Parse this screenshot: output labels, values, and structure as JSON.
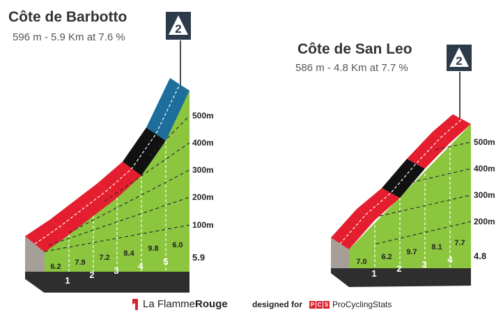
{
  "chart_data": [
    {
      "type": "area",
      "title": "Côte de Barbotto",
      "subtitle": "596 m - 5.9 Km at 7.6 %",
      "category": "2",
      "total_km": "5.9",
      "km_markers": [
        "1",
        "2",
        "3",
        "4",
        "5"
      ],
      "y_ticks": [
        "100m",
        "200m",
        "300m",
        "400m",
        "500m"
      ],
      "gradients": [
        "6.2",
        "7.9",
        "7.2",
        "8.4",
        "9.8",
        "6.0"
      ],
      "segment_colors": [
        "#e41e2f",
        "#e41e2f",
        "#e41e2f",
        "#e41e2f",
        "#111111",
        "#1d6e9b"
      ]
    },
    {
      "type": "area",
      "title": "Côte de San Leo",
      "subtitle": "586 m - 4.8 Km at 7.7 %",
      "category": "2",
      "total_km": "4.8",
      "km_markers": [
        "1",
        "2",
        "3",
        "4"
      ],
      "y_ticks": [
        "200m",
        "300m",
        "400m",
        "500m"
      ],
      "gradients": [
        "7.0",
        "6.2",
        "9.7",
        "8.1",
        "7.7"
      ],
      "segment_colors": [
        "#e41e2f",
        "#e41e2f",
        "#111111",
        "#e41e2f",
        "#e41e2f"
      ]
    }
  ],
  "footer": {
    "brand_plain": "La Flamme",
    "brand_bold": "Rouge",
    "designed_for": "designed for",
    "pcs_letters": [
      "P",
      "C",
      "S"
    ],
    "pcs_name": "ProCyclingStats"
  },
  "colors": {
    "green": "#8cc63f",
    "dark": "#2e2e2e",
    "stone": "#a69f98",
    "badge": "#2d3a4a"
  }
}
